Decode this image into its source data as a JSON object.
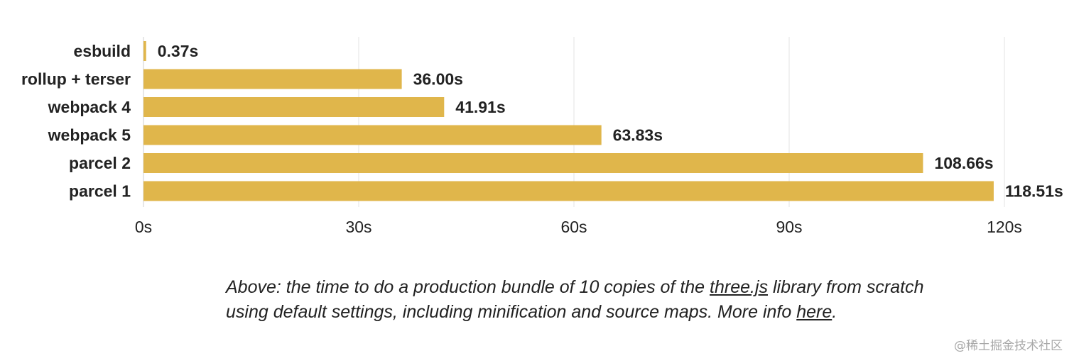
{
  "chart_data": {
    "type": "bar",
    "orientation": "horizontal",
    "categories": [
      "esbuild",
      "rollup + terser",
      "webpack 4",
      "webpack 5",
      "parcel 2",
      "parcel 1"
    ],
    "values": [
      0.37,
      36.0,
      41.91,
      63.83,
      108.66,
      118.51
    ],
    "value_labels": [
      "0.37s",
      "36.00s",
      "41.91s",
      "63.83s",
      "108.66s",
      "118.51s"
    ],
    "xticks": [
      0,
      30,
      60,
      90,
      120
    ],
    "xtick_labels": [
      "0s",
      "30s",
      "60s",
      "90s",
      "120s"
    ],
    "xlim": [
      0,
      120
    ],
    "grid": true,
    "bar_color": "#e0b64b",
    "grid_color": "#e3e3e3",
    "title": "",
    "xlabel": "",
    "ylabel": ""
  },
  "caption": {
    "part1": "Above: the time to do a production bundle of 10 copies of the ",
    "link1": "three.js",
    "part2": " library from scratch using default settings, including minification and source maps. More info ",
    "link2": "here",
    "part3": "."
  },
  "watermark": "@稀土掘金技术社区"
}
